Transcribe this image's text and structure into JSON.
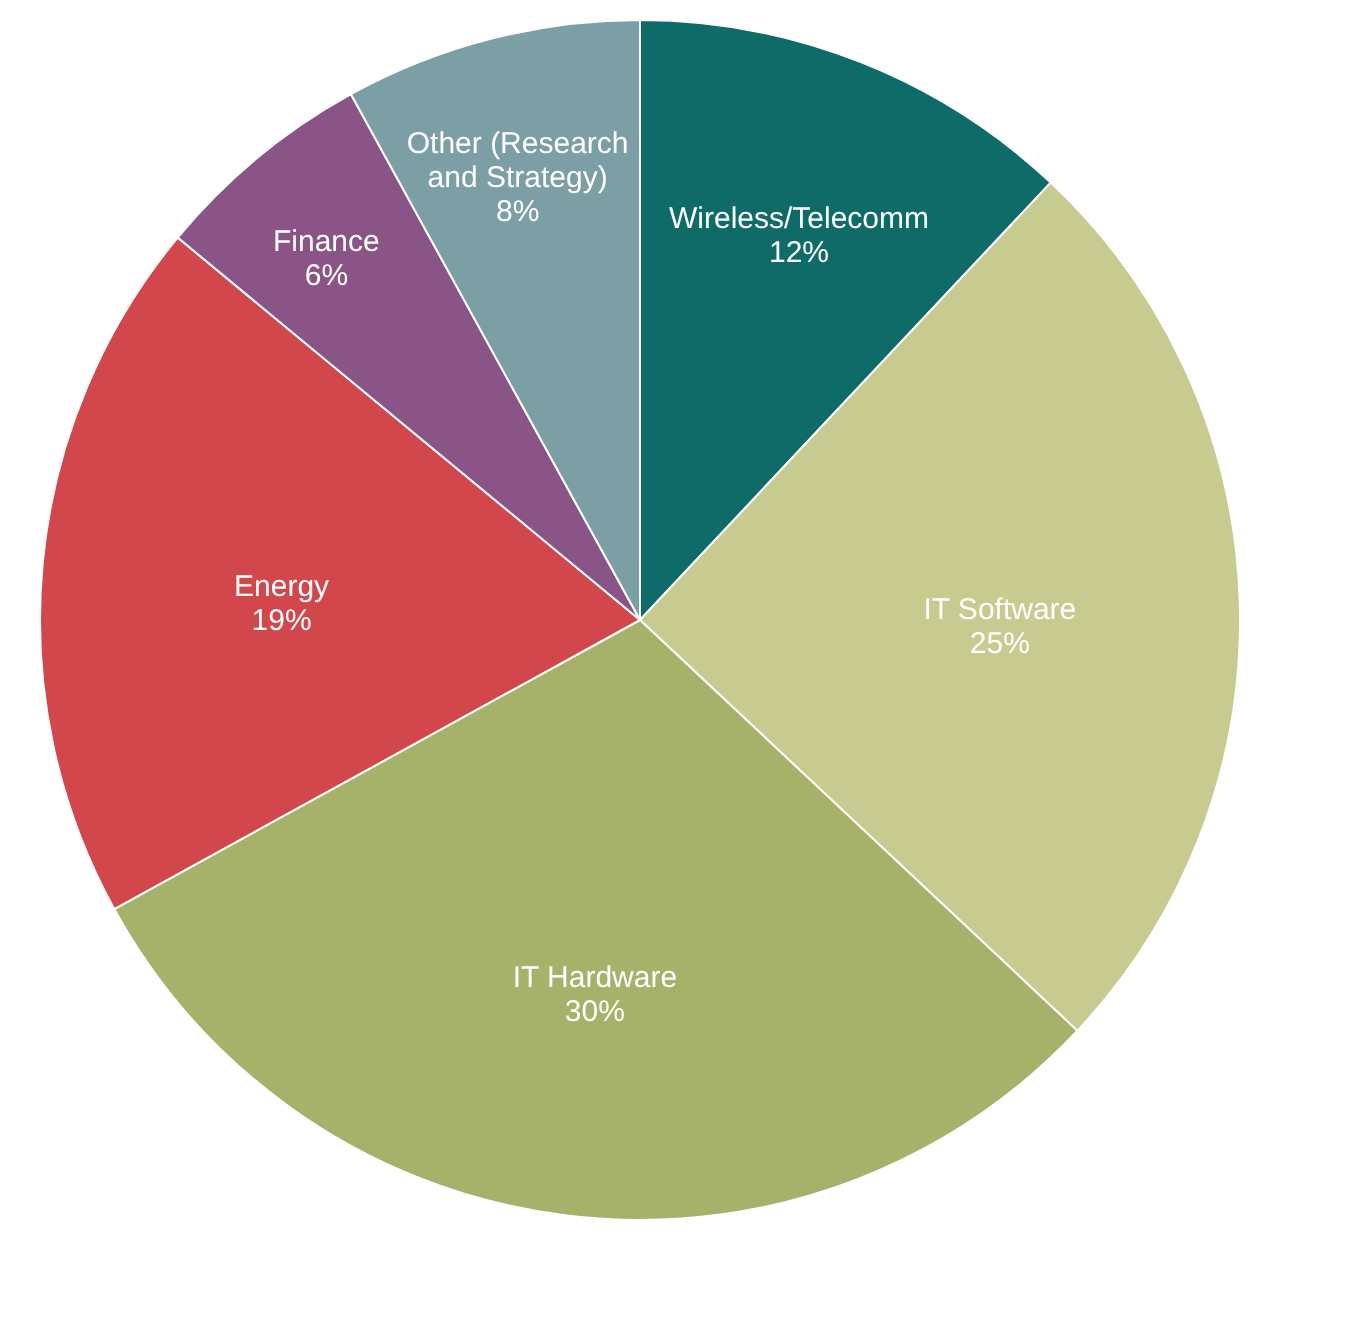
{
  "chart_data": {
    "type": "pie",
    "categories": [
      "Wireless/Telecomm",
      "IT Software",
      "IT Hardware",
      "Energy",
      "Finance",
      "Other (Research and Strategy)"
    ],
    "values": [
      12,
      25,
      30,
      19,
      6,
      8
    ],
    "value_labels": [
      "12%",
      "25%",
      "30%",
      "19%",
      "6%",
      "8%"
    ],
    "colors": [
      "#0e6b67",
      "#c8cb8f",
      "#a6b26a",
      "#d2474c",
      "#8a5586",
      "#7b9fa5"
    ],
    "legend": false
  }
}
